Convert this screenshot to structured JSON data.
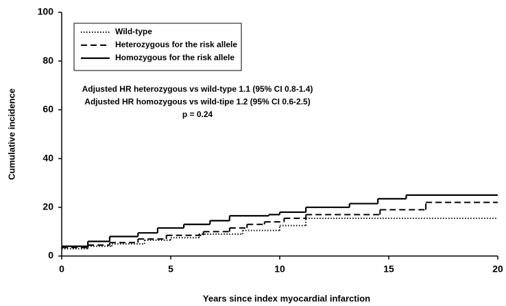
{
  "chart_data": {
    "type": "line",
    "step": true,
    "x_label": "Years since index myocardial infarction",
    "y_label": "Cumulative incidence",
    "xlim": [
      0,
      20
    ],
    "xticks": [
      0,
      5,
      10,
      15,
      20
    ],
    "ylim": [
      0,
      100
    ],
    "yticks": [
      0,
      20,
      40,
      60,
      80,
      100
    ],
    "grid": false,
    "legend": "upper left",
    "annotations": [
      "Adjusted HR heterozygous vs wild-type 1.1 (95% CI 0.8-1.4)",
      "Adjusted HR homozygous vs wild-tipe 1.2 (95% CI 0.6-2.5)",
      "p = 0.24"
    ],
    "series": [
      {
        "name": "Wild-type",
        "color": "#000000",
        "dash": "dotted",
        "x": [
          0,
          1.2,
          2.3,
          3.8,
          5.0,
          6.3,
          8.3,
          10.0,
          11.2
        ],
        "values": [
          3,
          4,
          5,
          6.5,
          7.5,
          9,
          10.5,
          12.5,
          15.5
        ]
      },
      {
        "name": "Heterozygous for the risk allele",
        "color": "#000000",
        "dash": "dashed",
        "x": [
          0,
          1.2,
          2.2,
          3.5,
          4.8,
          6.5,
          7.7,
          8.5,
          9.3,
          10.2,
          11.2,
          14.6,
          16.7
        ],
        "values": [
          3.5,
          4.5,
          5.5,
          7,
          8.5,
          10,
          11.5,
          13,
          14,
          15.5,
          17,
          19,
          22
        ]
      },
      {
        "name": "Homozygous  for the risk allele",
        "color": "#000000",
        "dash": "solid",
        "x": [
          0,
          1.2,
          2.2,
          3.5,
          4.4,
          5.6,
          6.8,
          7.7,
          9.5,
          10.0,
          11.2,
          13.2,
          14.5,
          15.8
        ],
        "values": [
          4,
          6,
          8,
          9.5,
          11.5,
          13,
          14.5,
          16.5,
          17,
          18,
          20,
          21.5,
          23.5,
          25
        ]
      }
    ]
  }
}
